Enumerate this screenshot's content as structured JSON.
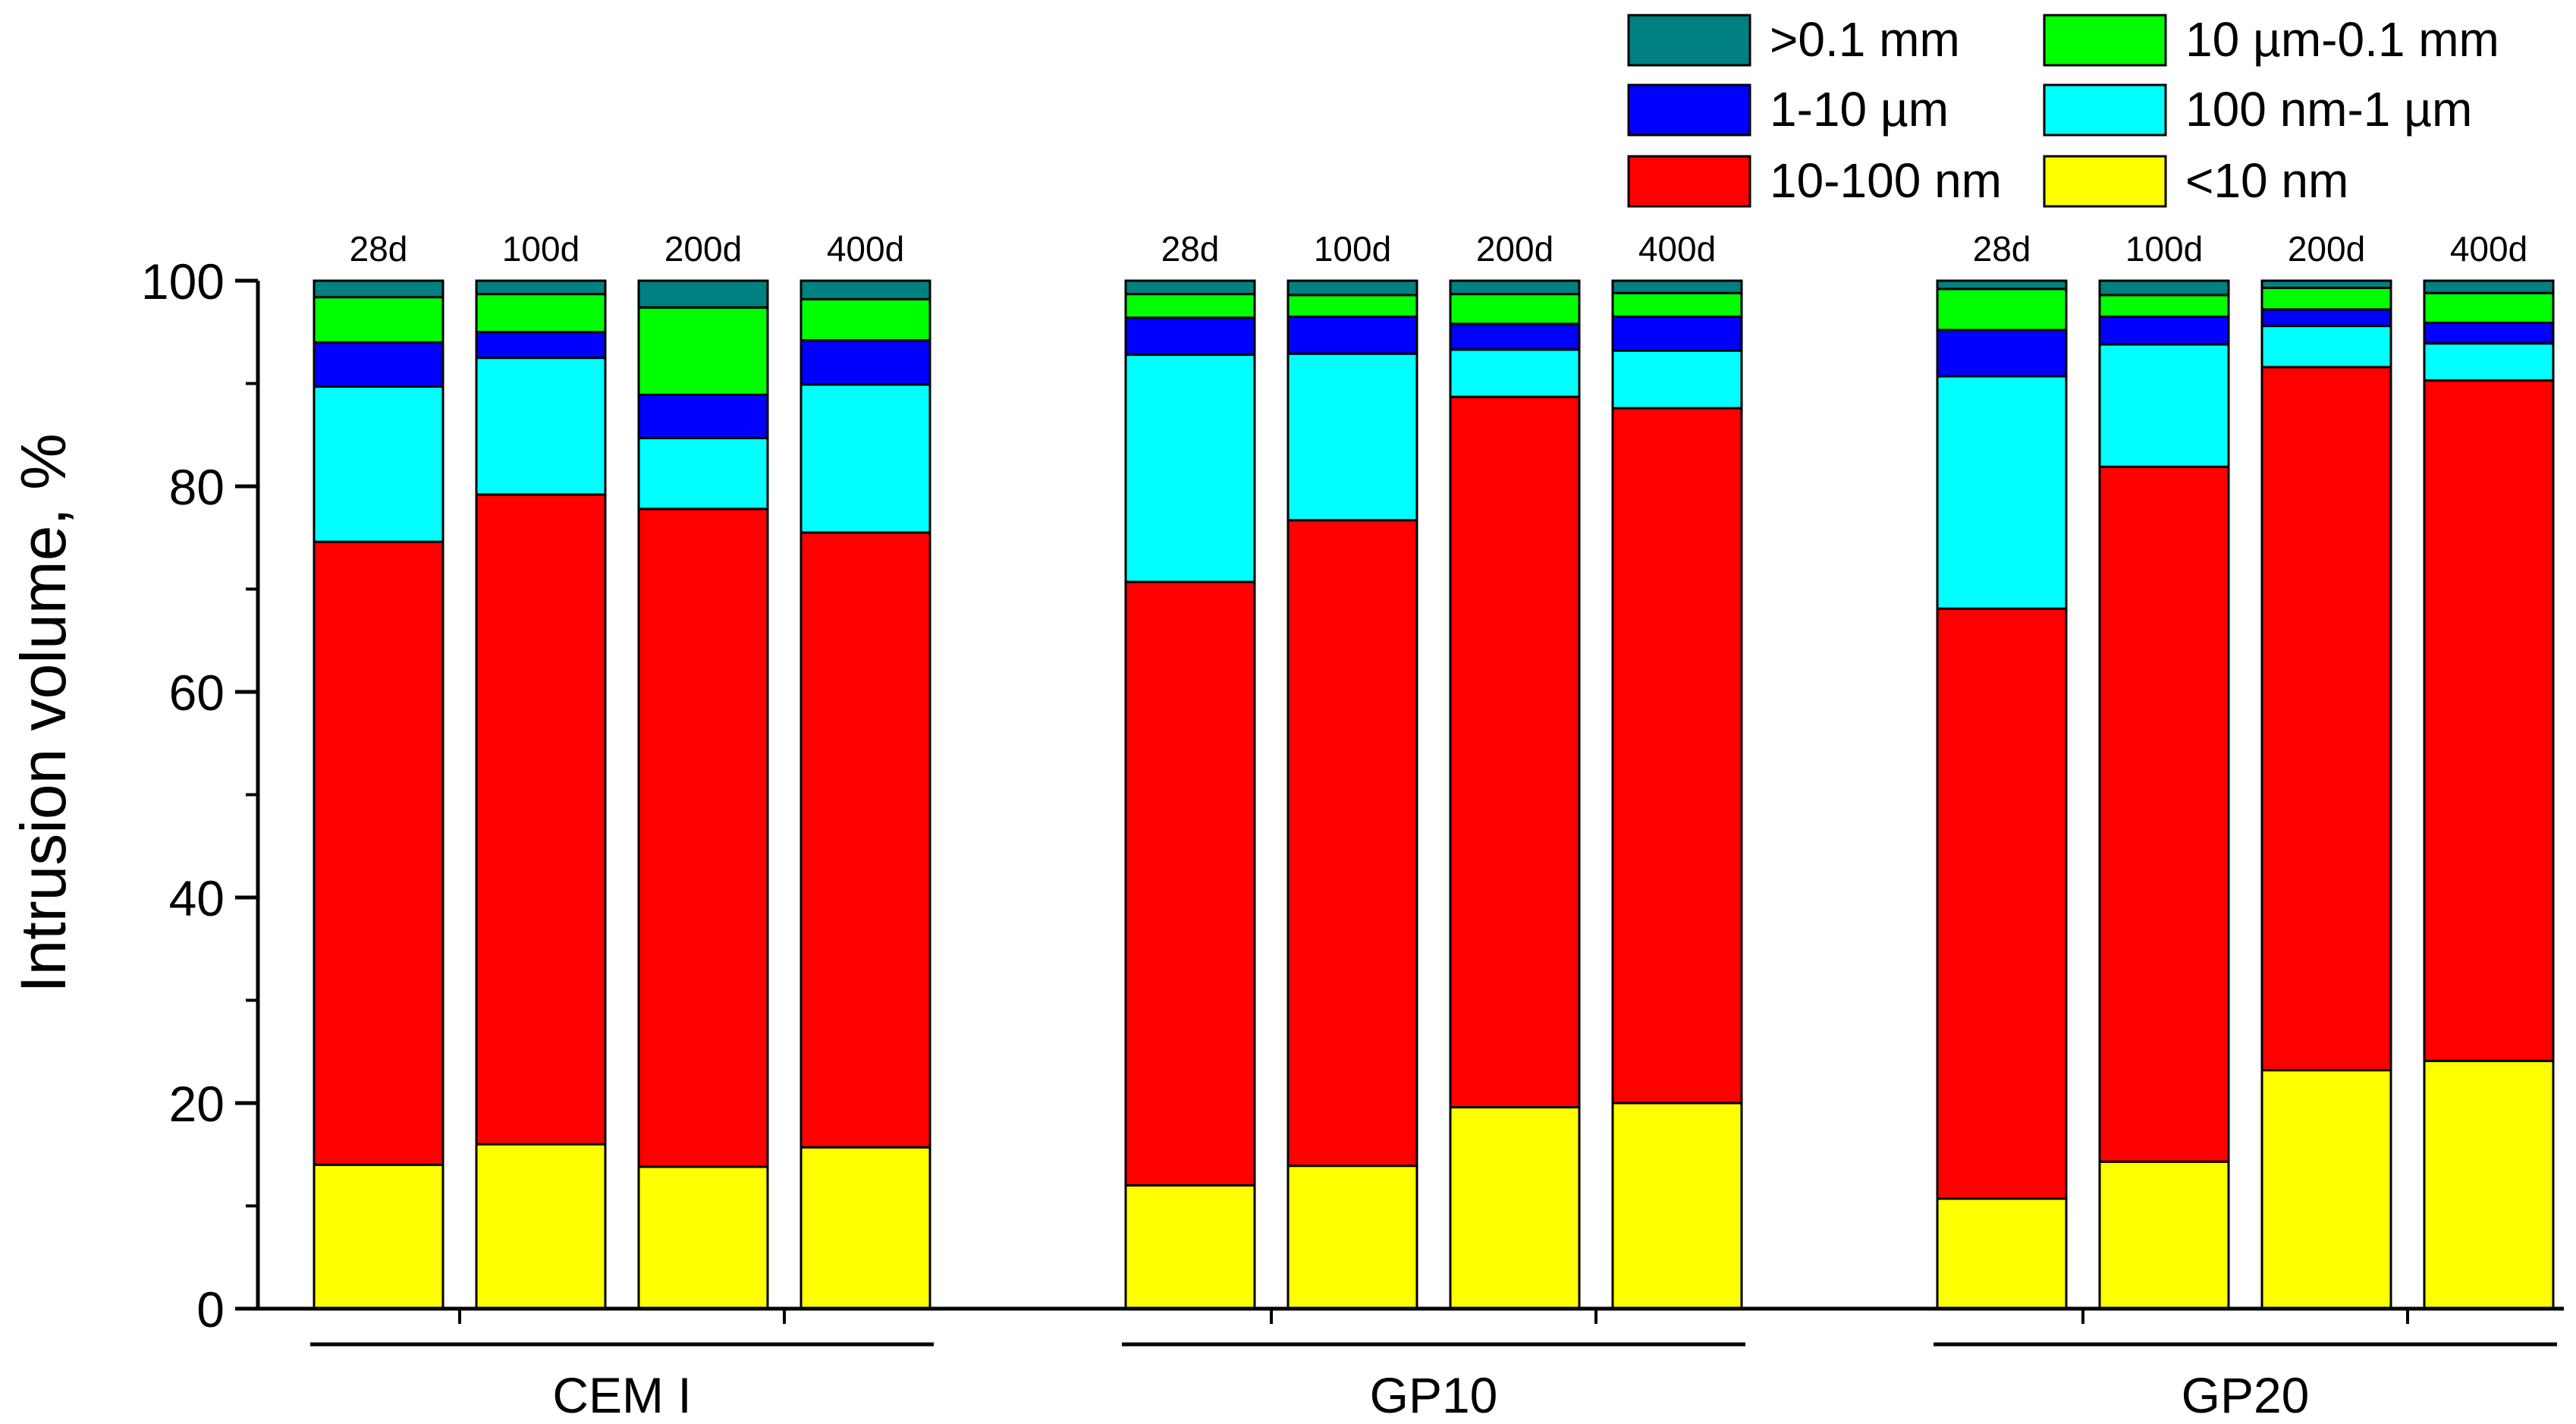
{
  "chart_data": {
    "type": "bar",
    "stacked": true,
    "title": "",
    "xlabel": "",
    "ylabel": "Intrusion volume, %",
    "ylim": [
      0,
      100
    ],
    "yticks": [
      0,
      20,
      40,
      60,
      80,
      100
    ],
    "grid": false,
    "legend_position": "top-right",
    "groups": [
      {
        "name": "CEM I",
        "categories": [
          "28d",
          "100d",
          "200d",
          "400d"
        ]
      },
      {
        "name": "GP10",
        "categories": [
          "28d",
          "100d",
          "200d",
          "400d"
        ]
      },
      {
        "name": "GP20",
        "categories": [
          "28d",
          "100d",
          "200d",
          "400d"
        ]
      }
    ],
    "series": [
      {
        "name": "<10 nm",
        "color": "#ffff00",
        "values": [
          14.0,
          16.0,
          13.8,
          15.7,
          12.0,
          13.9,
          19.6,
          20.0,
          10.7,
          14.3,
          23.2,
          24.1
        ]
      },
      {
        "name": "10-100 nm",
        "color": "#ff0000",
        "values": [
          60.6,
          63.2,
          64.0,
          59.8,
          58.7,
          62.8,
          69.1,
          67.6,
          57.4,
          67.6,
          68.4,
          66.2
        ]
      },
      {
        "name": "100 nm-1 µm",
        "color": "#00ffff",
        "values": [
          15.1,
          13.3,
          6.9,
          14.4,
          22.1,
          16.2,
          4.6,
          5.6,
          22.6,
          11.9,
          4.0,
          3.6
        ]
      },
      {
        "name": "1-10 µm",
        "color": "#0000ff",
        "values": [
          4.3,
          2.5,
          4.2,
          4.3,
          3.6,
          3.6,
          2.5,
          3.3,
          4.5,
          2.7,
          1.6,
          2.0
        ]
      },
      {
        "name": "10 µm-0.1 mm",
        "color": "#00ff00",
        "values": [
          4.4,
          3.7,
          8.5,
          4.0,
          2.3,
          2.1,
          2.9,
          2.3,
          4.0,
          2.1,
          2.1,
          2.9
        ]
      },
      {
        "name": ">0.1 mm",
        "color": "#008080",
        "values": [
          1.6,
          1.3,
          2.6,
          1.8,
          1.3,
          1.4,
          1.3,
          1.2,
          0.8,
          1.4,
          0.7,
          1.2
        ]
      }
    ],
    "legend_order": [
      ">0.1 mm",
      "10 µm-0.1 mm",
      "1-10 µm",
      "100 nm-1 µm",
      "10-100 nm",
      "<10 nm"
    ]
  }
}
